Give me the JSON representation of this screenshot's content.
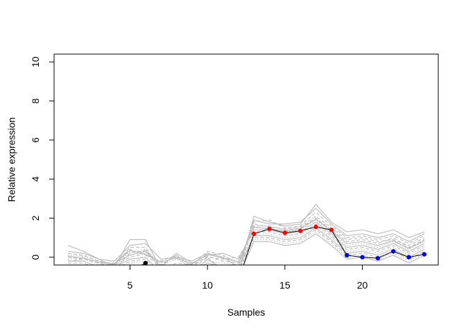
{
  "chart_data": {
    "type": "line",
    "title": "",
    "xlabel": "Samples",
    "ylabel": "Relative expression",
    "xlim": [
      0.1,
      24.9
    ],
    "ylim": [
      -0.4,
      10.4
    ],
    "x_ticks": [
      5,
      10,
      15,
      20
    ],
    "y_ticks": [
      0,
      2,
      4,
      6,
      8,
      10
    ],
    "grid": false,
    "legend": "none",
    "colors": {
      "background_lines": "#bebebe",
      "highlight_line": "#000000",
      "group_low": "#000000",
      "group_high": "#ff0000",
      "group_mid": "#0000ff"
    },
    "x": [
      1,
      2,
      3,
      4,
      5,
      6,
      7,
      8,
      9,
      10,
      11,
      12,
      13,
      14,
      15,
      16,
      17,
      18,
      19,
      20,
      21,
      22,
      23,
      24
    ],
    "series": [
      {
        "role": "highlight",
        "values": [
          -0.9,
          -1.0,
          -1.1,
          -1.0,
          -0.7,
          -0.3,
          -1.1,
          -1.2,
          -1.0,
          -1.3,
          -1.1,
          -1.2,
          1.2,
          1.45,
          1.25,
          1.35,
          1.55,
          1.4,
          0.1,
          0.0,
          -0.05,
          0.3,
          0.0,
          0.15
        ],
        "point_groups": [
          {
            "color": "#000000",
            "indices": [
              5
            ]
          },
          {
            "color": "#ff0000",
            "indices": [
              12,
              13,
              14,
              15,
              16,
              17
            ]
          },
          {
            "color": "#0000ff",
            "indices": [
              18,
              19,
              20,
              21,
              22,
              23
            ]
          }
        ]
      }
    ],
    "background_series": [
      {
        "values": [
          0.6,
          0.3,
          -0.1,
          -0.5,
          0.9,
          0.9,
          -0.6,
          -0.5,
          -0.8,
          -0.1,
          -0.6,
          -0.8,
          2.1,
          1.8,
          1.6,
          1.7,
          2.7,
          1.8,
          1.3,
          1.4,
          1.2,
          1.4,
          1.0,
          1.3
        ],
        "dash": "solid"
      },
      {
        "values": [
          0.2,
          0.1,
          -0.2,
          -0.4,
          0.5,
          0.5,
          -0.7,
          -0.6,
          -0.6,
          0.0,
          -0.7,
          -0.9,
          1.8,
          1.9,
          1.5,
          1.6,
          2.3,
          1.6,
          1.0,
          1.1,
          0.9,
          1.1,
          0.7,
          1.1
        ],
        "dash": "dashed"
      },
      {
        "values": [
          0.0,
          -0.1,
          -0.3,
          -0.3,
          0.4,
          0.1,
          -0.2,
          0.1,
          -0.4,
          0.3,
          0.1,
          -0.3,
          1.6,
          1.6,
          1.4,
          1.5,
          2.0,
          1.4,
          0.8,
          0.9,
          0.7,
          1.0,
          0.5,
          0.9
        ],
        "dash": "dashed"
      },
      {
        "values": [
          -0.1,
          0.0,
          -0.4,
          -0.2,
          0.2,
          0.4,
          -0.4,
          -0.1,
          -0.5,
          0.2,
          0.0,
          -0.2,
          1.5,
          1.5,
          1.3,
          1.4,
          1.9,
          1.3,
          0.6,
          0.7,
          0.5,
          0.8,
          0.4,
          0.8
        ],
        "dash": "dotted"
      },
      {
        "values": [
          -0.2,
          -0.2,
          -0.5,
          -0.3,
          0.1,
          0.3,
          -0.5,
          0.2,
          -0.3,
          0.1,
          0.2,
          -0.1,
          1.4,
          1.4,
          1.2,
          1.3,
          1.8,
          1.2,
          0.5,
          0.6,
          0.4,
          0.7,
          0.3,
          0.7
        ],
        "dash": "solid"
      },
      {
        "values": [
          -0.3,
          -0.3,
          -0.6,
          -0.4,
          0.0,
          0.2,
          -0.6,
          -0.3,
          -0.4,
          0.0,
          -0.1,
          0.0,
          1.3,
          1.3,
          1.1,
          1.2,
          1.7,
          1.1,
          0.4,
          0.5,
          0.3,
          0.6,
          0.2,
          0.6
        ],
        "dash": "dashed"
      },
      {
        "values": [
          0.1,
          0.05,
          -0.2,
          -0.5,
          0.3,
          0.25,
          -0.3,
          0.0,
          -0.6,
          -0.2,
          -0.3,
          -0.4,
          1.2,
          1.2,
          1.0,
          1.1,
          1.6,
          1.0,
          0.3,
          0.4,
          0.2,
          0.5,
          0.1,
          0.5
        ],
        "dash": "dotted"
      },
      {
        "values": [
          -0.4,
          -0.4,
          -0.7,
          -0.5,
          -0.1,
          0.0,
          -0.8,
          -0.5,
          -0.7,
          -0.3,
          -0.5,
          -0.6,
          1.1,
          1.1,
          0.9,
          1.0,
          1.5,
          0.9,
          0.2,
          0.3,
          0.1,
          0.4,
          0.0,
          0.4
        ],
        "dash": "solid"
      },
      {
        "values": [
          -0.5,
          -0.5,
          -0.8,
          -0.6,
          -0.2,
          -0.1,
          -0.9,
          -0.6,
          -0.8,
          -0.4,
          -0.6,
          -0.7,
          1.0,
          1.0,
          0.8,
          0.9,
          1.4,
          0.8,
          0.1,
          0.2,
          0.0,
          0.3,
          -0.1,
          0.3
        ],
        "dash": "dashed"
      },
      {
        "values": [
          -0.6,
          -0.6,
          -0.9,
          -0.7,
          -0.3,
          -0.2,
          -1.0,
          -0.7,
          -0.9,
          -0.5,
          -0.7,
          -0.8,
          0.9,
          0.9,
          0.7,
          0.8,
          1.3,
          0.7,
          0.0,
          0.1,
          -0.1,
          0.2,
          -0.2,
          0.2
        ],
        "dash": "dotted"
      },
      {
        "values": [
          0.3,
          0.2,
          -0.1,
          -0.2,
          0.6,
          0.7,
          -0.1,
          0.0,
          -0.2,
          0.2,
          0.0,
          -0.5,
          1.9,
          1.7,
          1.7,
          1.8,
          2.5,
          1.7,
          1.1,
          1.2,
          1.0,
          1.2,
          0.8,
          1.2
        ],
        "dash": "solid"
      },
      {
        "values": [
          -0.2,
          -0.1,
          -0.3,
          -0.6,
          0.2,
          0.35,
          -0.4,
          0.1,
          -0.5,
          0.05,
          -0.2,
          -0.3,
          1.7,
          1.55,
          1.45,
          1.55,
          2.1,
          1.5,
          0.9,
          1.0,
          0.8,
          0.9,
          0.6,
          1.0
        ],
        "dash": "dashed"
      },
      {
        "values": [
          -0.7,
          -0.8,
          -1.0,
          -0.9,
          -0.5,
          -0.4,
          -1.1,
          -0.9,
          -1.0,
          -0.8,
          -0.9,
          -1.0,
          0.8,
          0.8,
          0.6,
          0.7,
          1.2,
          0.6,
          -0.1,
          0.0,
          -0.2,
          0.1,
          -0.3,
          0.1
        ],
        "dash": "solid"
      },
      {
        "values": [
          0.05,
          -0.05,
          -0.25,
          -0.35,
          0.35,
          0.15,
          -0.25,
          -0.05,
          -0.35,
          0.15,
          -0.05,
          -0.25,
          1.55,
          1.45,
          1.35,
          1.45,
          1.95,
          1.35,
          0.7,
          0.8,
          0.6,
          0.85,
          0.45,
          0.85
        ],
        "dash": "solid"
      }
    ]
  }
}
